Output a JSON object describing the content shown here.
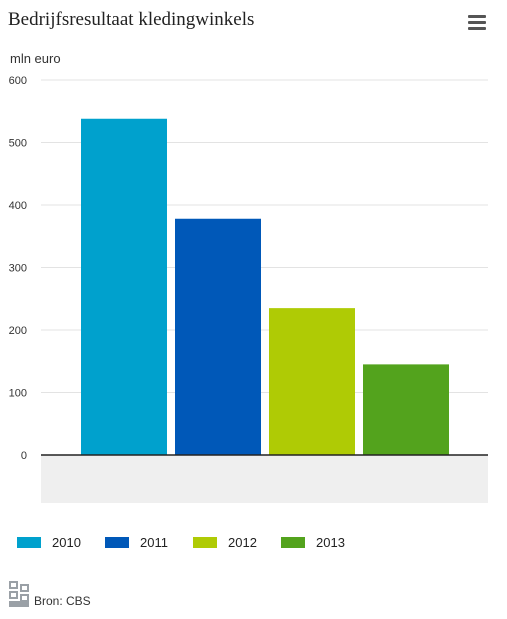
{
  "header": {
    "title": "Bedrijfsresultaat kledingwinkels",
    "menu_icon": "hamburger-menu-icon"
  },
  "chart_data": {
    "type": "bar",
    "title": "Bedrijfsresultaat kledingwinkels",
    "ylabel": "mln euro",
    "xlabel": "",
    "ylim": [
      0,
      600
    ],
    "yticks": [
      0,
      100,
      200,
      300,
      400,
      500,
      600
    ],
    "grid": true,
    "legend_position": "bottom",
    "series": [
      {
        "name": "2010",
        "value": 538,
        "color": "#00a1cd"
      },
      {
        "name": "2011",
        "value": 378,
        "color": "#0058b8"
      },
      {
        "name": "2012",
        "value": 235,
        "color": "#afcb05"
      },
      {
        "name": "2013",
        "value": 145,
        "color": "#53a31d"
      }
    ]
  },
  "footer": {
    "source": "Bron: CBS",
    "logo_icon": "cbs-logo-icon"
  }
}
